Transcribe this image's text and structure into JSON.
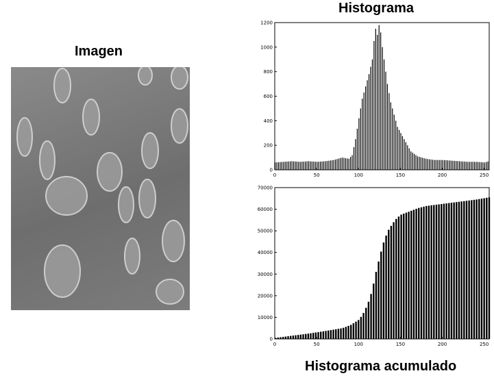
{
  "figure": {
    "image_title": "Imagen",
    "histogram_title": "Histograma",
    "cumulative_title": "Histograma acumulado"
  },
  "colors": {
    "bars": "#000000",
    "background": "#ffffff",
    "image_gray": "#777777"
  },
  "image_panel": {
    "content": "grayscale microscopy photograph of oval cells",
    "icon": "photo-icon"
  },
  "chart_data": [
    {
      "type": "bar",
      "title": "Histograma",
      "xlim": [
        0,
        256
      ],
      "ylim": [
        0,
        1200
      ],
      "xticks": [
        0,
        50,
        100,
        150,
        200,
        250
      ],
      "yticks": [
        0,
        200,
        400,
        600,
        800,
        1000,
        1200
      ],
      "grid": false,
      "anchors": [
        [
          0,
          60
        ],
        [
          10,
          65
        ],
        [
          20,
          70
        ],
        [
          30,
          65
        ],
        [
          40,
          70
        ],
        [
          50,
          65
        ],
        [
          60,
          70
        ],
        [
          70,
          80
        ],
        [
          80,
          100
        ],
        [
          88,
          90
        ],
        [
          92,
          120
        ],
        [
          96,
          250
        ],
        [
          100,
          420
        ],
        [
          104,
          580
        ],
        [
          108,
          680
        ],
        [
          112,
          780
        ],
        [
          116,
          900
        ],
        [
          118,
          1050
        ],
        [
          120,
          1150
        ],
        [
          122,
          1100
        ],
        [
          124,
          1180
        ],
        [
          126,
          1120
        ],
        [
          128,
          1000
        ],
        [
          130,
          900
        ],
        [
          134,
          700
        ],
        [
          138,
          550
        ],
        [
          142,
          450
        ],
        [
          146,
          350
        ],
        [
          150,
          300
        ],
        [
          154,
          250
        ],
        [
          158,
          200
        ],
        [
          162,
          150
        ],
        [
          166,
          130
        ],
        [
          170,
          110
        ],
        [
          180,
          90
        ],
        [
          190,
          80
        ],
        [
          200,
          80
        ],
        [
          210,
          75
        ],
        [
          220,
          70
        ],
        [
          230,
          65
        ],
        [
          240,
          65
        ],
        [
          250,
          60
        ],
        [
          255,
          70
        ]
      ]
    },
    {
      "type": "bar",
      "title": "Histograma acumulado",
      "xlim": [
        0,
        256
      ],
      "ylim": [
        0,
        70000
      ],
      "xticks": [
        0,
        50,
        100,
        150,
        200,
        250
      ],
      "yticks": [
        0,
        10000,
        20000,
        30000,
        40000,
        50000,
        60000,
        70000
      ],
      "grid": false,
      "anchors": [
        [
          0,
          500
        ],
        [
          20,
          1500
        ],
        [
          40,
          2500
        ],
        [
          60,
          3700
        ],
        [
          80,
          5000
        ],
        [
          90,
          6500
        ],
        [
          100,
          9000
        ],
        [
          105,
          12000
        ],
        [
          110,
          16000
        ],
        [
          115,
          22000
        ],
        [
          120,
          31000
        ],
        [
          125,
          39000
        ],
        [
          130,
          46000
        ],
        [
          135,
          50500
        ],
        [
          140,
          53500
        ],
        [
          145,
          56000
        ],
        [
          150,
          57500
        ],
        [
          160,
          59000
        ],
        [
          170,
          60500
        ],
        [
          180,
          61500
        ],
        [
          200,
          62500
        ],
        [
          220,
          63500
        ],
        [
          240,
          64500
        ],
        [
          255,
          65500
        ]
      ]
    }
  ]
}
